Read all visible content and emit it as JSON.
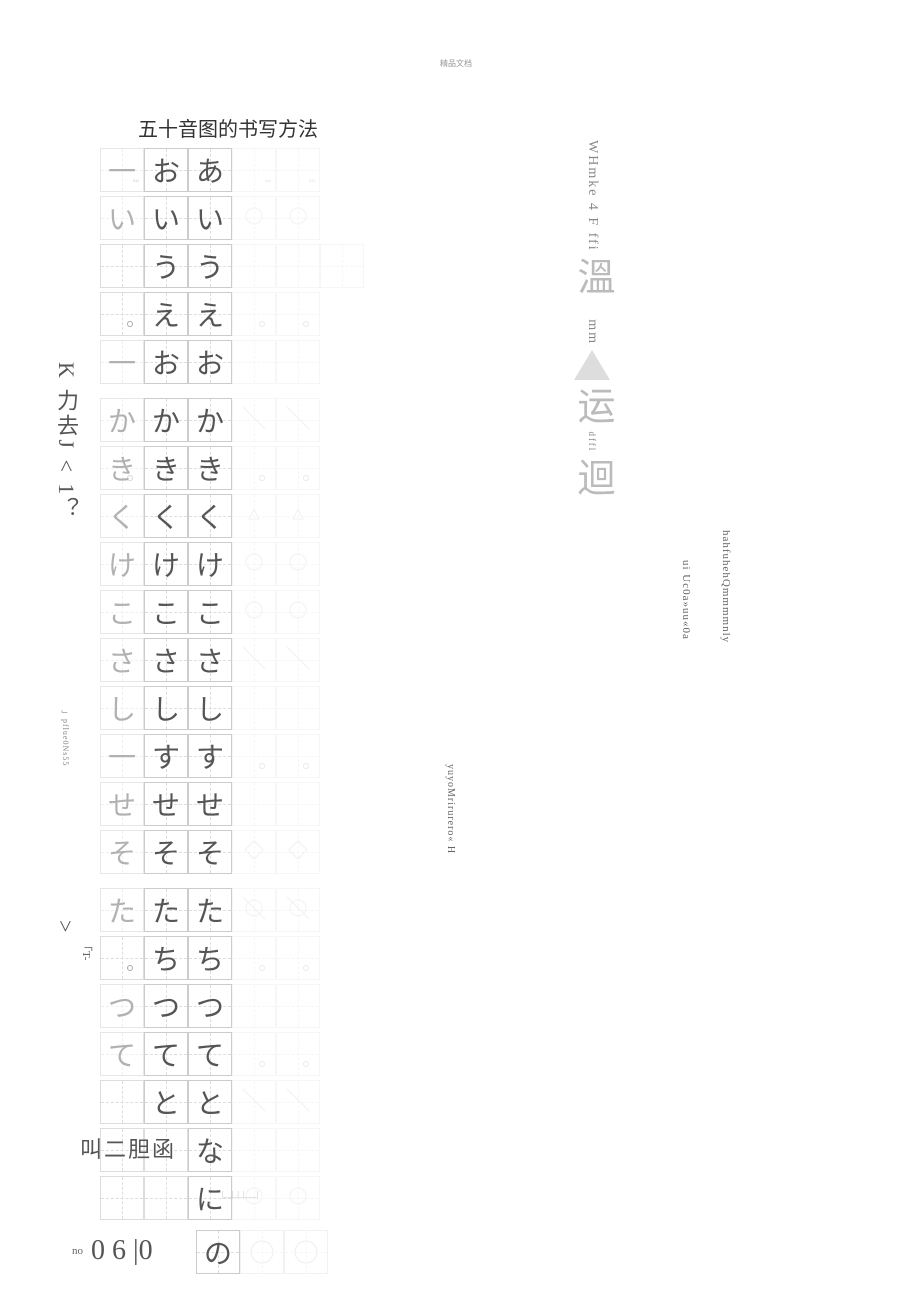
{
  "header_tiny": "精品文档",
  "title": "五十音图的书写方法",
  "kana_rows": [
    {
      "chars": [
        "一",
        "お",
        "あ",
        "",
        ""
      ],
      "ghost_marks": [
        "°°",
        "",
        "",
        "°°",
        "°°"
      ],
      "spaced": false
    },
    {
      "chars": [
        "い",
        "い",
        "い",
        "",
        ""
      ],
      "circles": [
        3,
        4
      ],
      "spaced": false
    },
    {
      "chars": [
        "",
        "う",
        "う",
        "",
        ""
      ],
      "spaced": false,
      "extra_empty": true
    },
    {
      "chars": [
        "",
        "え",
        "え",
        "",
        ""
      ],
      "dots": [
        0,
        3,
        4
      ],
      "spaced": false
    },
    {
      "chars": [
        "一",
        "お",
        "お",
        "",
        ""
      ],
      "spaced": false
    },
    {
      "chars": [
        "か",
        "か",
        "か",
        "",
        ""
      ],
      "diag": [
        3,
        4
      ],
      "spaced": true
    },
    {
      "chars": [
        "き",
        "き",
        "き",
        "",
        ""
      ],
      "dots": [
        0,
        3,
        4
      ],
      "spaced": false
    },
    {
      "chars": [
        "く",
        "く",
        "く",
        "",
        ""
      ],
      "tri": [
        3,
        4
      ],
      "spaced": false
    },
    {
      "chars": [
        "け",
        "け",
        "け",
        "",
        ""
      ],
      "circles": [
        3,
        4
      ],
      "spaced": false
    },
    {
      "chars": [
        "こ",
        "こ",
        "こ",
        "",
        ""
      ],
      "circles": [
        3,
        4
      ],
      "spaced": false
    },
    {
      "chars": [
        "さ",
        "さ",
        "さ",
        "",
        ""
      ],
      "diag": [
        3,
        4
      ],
      "spaced": false
    },
    {
      "chars": [
        "し",
        "し",
        "し",
        "",
        ""
      ],
      "spaced": false
    },
    {
      "chars": [
        "一",
        "す",
        "す",
        "",
        ""
      ],
      "dots": [
        3,
        4
      ],
      "spaced": false
    },
    {
      "chars": [
        "せ",
        "せ",
        "せ",
        "",
        ""
      ],
      "spaced": false
    },
    {
      "chars": [
        "そ",
        "そ",
        "そ",
        "",
        ""
      ],
      "hex": [
        3,
        4
      ],
      "spaced": false
    },
    {
      "chars": [
        "た",
        "た",
        "た",
        "",
        ""
      ],
      "circles": [
        3,
        4
      ],
      "diag": [
        3,
        4
      ],
      "spaced": true
    },
    {
      "chars": [
        "",
        "ち",
        "ち",
        "",
        ""
      ],
      "dots": [
        0,
        3,
        4
      ],
      "spaced": false
    },
    {
      "chars": [
        "つ",
        "つ",
        "つ",
        "",
        ""
      ],
      "spaced": false
    },
    {
      "chars": [
        "て",
        "て",
        "て",
        "",
        ""
      ],
      "dots": [
        3,
        4
      ],
      "spaced": false
    },
    {
      "chars": [
        "",
        "と",
        "と",
        "",
        ""
      ],
      "diag": [
        3,
        4
      ],
      "spaced": false
    },
    {
      "chars": [
        "",
        "",
        "な",
        "",
        ""
      ],
      "spaced": false
    },
    {
      "chars": [
        "",
        "",
        "に",
        "",
        ""
      ],
      "circles": [
        3,
        4
      ],
      "spaced": false,
      "show_prefix": true
    }
  ],
  "side_texts": {
    "v1": "K 力去J < 1？",
    "v2": "」pflue0Ns55",
    "v3": ">",
    "v4": "「T-",
    "v5": "yuyoMrirurero« H",
    "v6": "WHmke 4 F ffi",
    "v6_kanji": "溫",
    "v7": "mm",
    "v7_kanji": "运",
    "v7_suffix": "dffl",
    "v7_kanji2": "迴",
    "v8_label": "",
    "v9": "ui Uc0a»uu«0a",
    "v10": "hahfuhehQmmmmnly"
  },
  "bottom_text": "叫二胆函",
  "bottom_sub": "|__|_|_|___|",
  "footer": {
    "no": "no",
    "digits": "0 6 |0",
    "kana": "の"
  },
  "colors": {
    "border": "#cccccc",
    "text": "#555555",
    "ghost": "#bbbbbb",
    "bg": "#ffffff"
  }
}
